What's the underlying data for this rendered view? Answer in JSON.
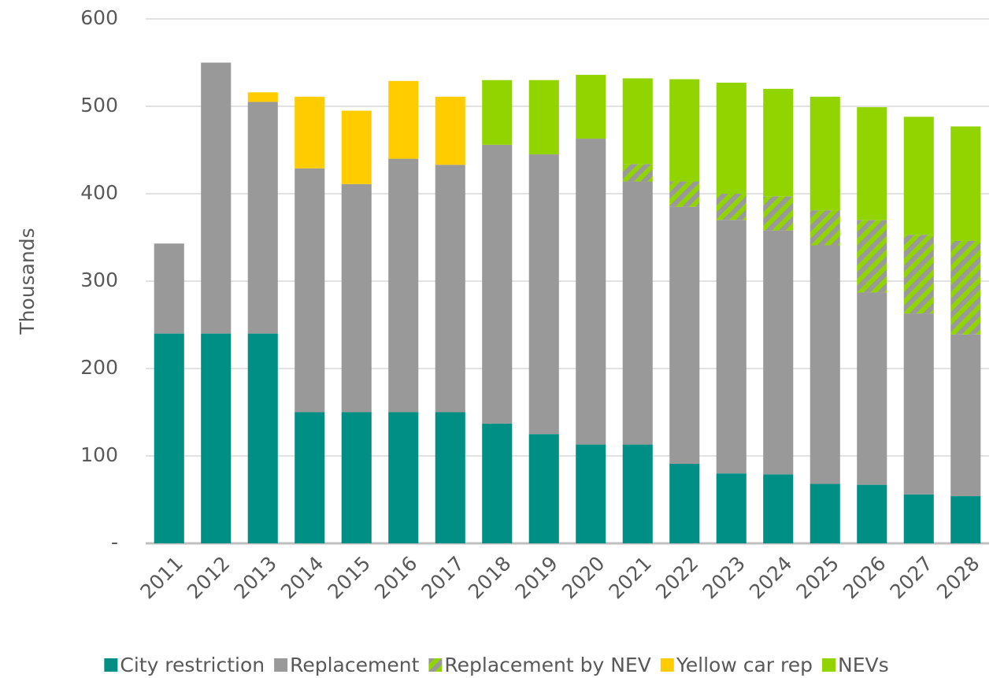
{
  "chart_data": {
    "type": "stacked-bar",
    "y_label": "Thousands",
    "categories": [
      "2011",
      "2012",
      "2013",
      "2014",
      "2015",
      "2016",
      "2017",
      "2018",
      "2019",
      "2020",
      "2021",
      "2022",
      "2023",
      "2024",
      "2025",
      "2026",
      "2027",
      "2028"
    ],
    "series": [
      {
        "name": "City restriction",
        "color": "#008f84",
        "values": [
          240,
          240,
          240,
          150,
          150,
          150,
          150,
          137,
          125,
          113,
          113,
          91,
          80,
          79,
          68,
          67,
          56,
          54
        ]
      },
      {
        "name": "Replacement",
        "color": "#999999",
        "values": [
          103,
          310,
          265,
          279,
          261,
          290,
          283,
          319,
          320,
          350,
          301,
          294,
          290,
          279,
          273,
          220,
          207,
          185
        ]
      },
      {
        "name": "Replacement by NEV",
        "color": "#92d400",
        "hatched": true,
        "values": [
          null,
          null,
          null,
          null,
          null,
          null,
          null,
          null,
          null,
          null,
          20,
          29,
          30,
          39,
          40,
          83,
          90,
          107
        ]
      },
      {
        "name": "Yellow car rep",
        "color": "#ffcc00",
        "values": [
          null,
          null,
          11,
          82,
          84,
          89,
          78,
          null,
          null,
          null,
          null,
          null,
          null,
          null,
          null,
          null,
          null,
          null
        ]
      },
      {
        "name": "NEVs",
        "color": "#92d400",
        "values": [
          null,
          null,
          null,
          null,
          null,
          null,
          null,
          74,
          85,
          73,
          98,
          117,
          127,
          123,
          130,
          129,
          135,
          131
        ]
      }
    ],
    "ylim": [
      0,
      600
    ],
    "yticks": [
      {
        "value": 0,
        "label": "-"
      },
      100,
      200,
      300,
      400,
      500,
      600
    ],
    "grid": true,
    "legend": "bottom"
  }
}
